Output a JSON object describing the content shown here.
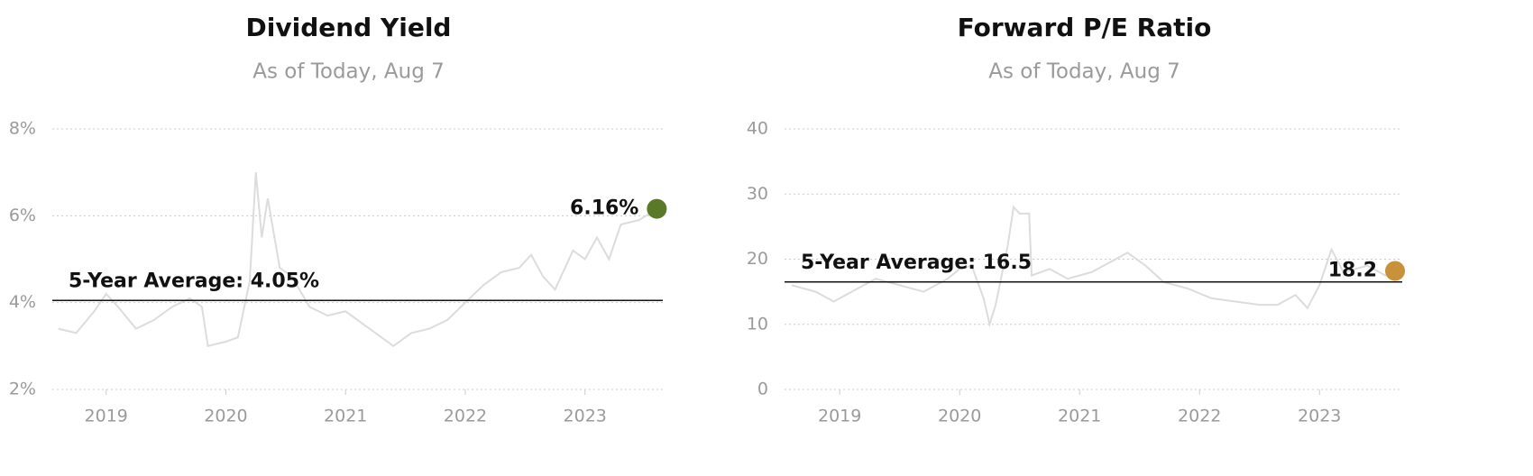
{
  "chart_data": [
    {
      "type": "line",
      "title": "Dividend Yield",
      "subtitle": "As of Today, Aug 7",
      "x": [
        2018.6,
        2018.75,
        2018.9,
        2019.0,
        2019.1,
        2019.25,
        2019.4,
        2019.55,
        2019.7,
        2019.8,
        2019.85,
        2020.0,
        2020.1,
        2020.2,
        2020.25,
        2020.3,
        2020.35,
        2020.45,
        2020.55,
        2020.7,
        2020.85,
        2021.0,
        2021.15,
        2021.3,
        2021.4,
        2021.55,
        2021.7,
        2021.85,
        2022.0,
        2022.15,
        2022.3,
        2022.45,
        2022.55,
        2022.65,
        2022.75,
        2022.9,
        2023.0,
        2023.1,
        2023.2,
        2023.3,
        2023.45,
        2023.6
      ],
      "series": [
        {
          "color": "#dcdcdc",
          "values": [
            3.4,
            3.3,
            3.8,
            4.2,
            3.9,
            3.4,
            3.6,
            3.9,
            4.1,
            3.9,
            3.0,
            3.1,
            3.2,
            4.5,
            7.0,
            5.5,
            6.4,
            4.8,
            4.6,
            3.9,
            3.7,
            3.8,
            3.5,
            3.2,
            3.0,
            3.3,
            3.4,
            3.6,
            4.0,
            4.4,
            4.7,
            4.8,
            5.1,
            4.6,
            4.3,
            5.2,
            5.0,
            5.5,
            5.0,
            5.8,
            5.9,
            6.16
          ]
        }
      ],
      "xlim": [
        2018.55,
        2023.65
      ],
      "xticks": [
        2019,
        2020,
        2021,
        2022,
        2023
      ],
      "ylim": [
        2,
        8
      ],
      "yticks": [
        {
          "value": 2,
          "label": "2%"
        },
        {
          "value": 4,
          "label": "4%"
        },
        {
          "value": 6,
          "label": "6%"
        },
        {
          "value": 8,
          "label": "8%"
        }
      ],
      "grid": true,
      "average": {
        "value": 4.05,
        "label": "5-Year Average: 4.05%"
      },
      "current": {
        "x": 2023.6,
        "value": 6.16,
        "label": "6.16%",
        "color": "#5a7a2a"
      }
    },
    {
      "type": "line",
      "title": "Forward P/E Ratio",
      "subtitle": "As of Today, Aug 7",
      "x": [
        2018.6,
        2018.8,
        2018.95,
        2019.1,
        2019.3,
        2019.5,
        2019.7,
        2019.9,
        2020.0,
        2020.1,
        2020.2,
        2020.25,
        2020.3,
        2020.4,
        2020.45,
        2020.5,
        2020.58,
        2020.6,
        2020.75,
        2020.9,
        2021.1,
        2021.3,
        2021.4,
        2021.55,
        2021.7,
        2021.9,
        2022.1,
        2022.3,
        2022.5,
        2022.65,
        2022.8,
        2022.9,
        2023.0,
        2023.1,
        2023.2,
        2023.4,
        2023.55,
        2023.63
      ],
      "series": [
        {
          "color": "#dcdcdc",
          "values": [
            16,
            15,
            13.5,
            15,
            17,
            16,
            15,
            17,
            18.5,
            19,
            14,
            10,
            13,
            22,
            28,
            27,
            27,
            17.5,
            18.5,
            17,
            18,
            20,
            21,
            19,
            16.5,
            15.5,
            14,
            13.5,
            13,
            13,
            14.5,
            12.5,
            16,
            21.5,
            18,
            19,
            17.5,
            18.2
          ]
        }
      ],
      "xlim": [
        2018.54,
        2023.69
      ],
      "xticks": [
        2019,
        2020,
        2021,
        2022,
        2023
      ],
      "ylim": [
        0,
        40
      ],
      "yticks": [
        0,
        10,
        20,
        30,
        40
      ],
      "grid": true,
      "average": {
        "value": 16.5,
        "label": "5-Year Average: 16.5"
      },
      "current": {
        "x": 2023.63,
        "value": 18.2,
        "color": "#c9913a"
      }
    }
  ]
}
